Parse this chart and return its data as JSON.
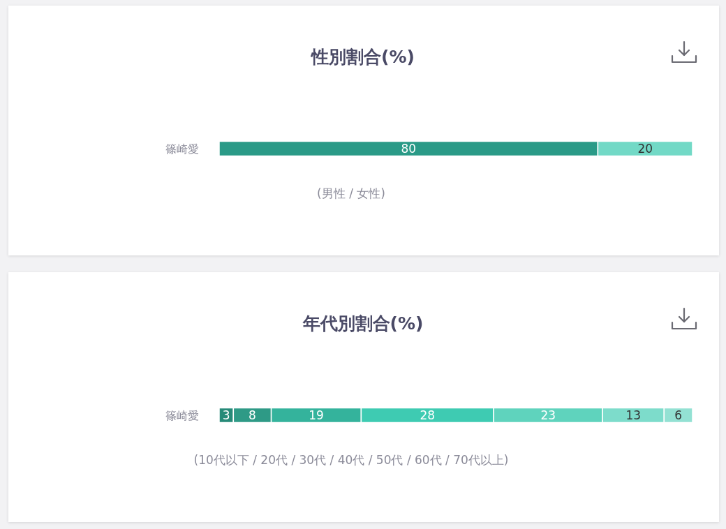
{
  "chart_data": [
    {
      "type": "bar",
      "orientation": "horizontal",
      "stacked": true,
      "title": "性別割合(%)",
      "xlabel": "(男性 / 女性)",
      "categories": [
        "篠崎愛"
      ],
      "series": [
        {
          "color": "#2a9a87",
          "values": [
            80
          ]
        },
        {
          "color": "#72d9c6",
          "values": [
            20
          ]
        }
      ],
      "xlim": [
        0,
        100
      ],
      "data_labels": true,
      "tick_labels": "y"
    },
    {
      "type": "bar",
      "orientation": "horizontal",
      "stacked": true,
      "title": "年代別割合(%)",
      "xlabel": "(10代以下 / 20代 / 30代 / 40代 / 50代 / 60代 / 70代以上)",
      "categories": [
        "篠崎愛"
      ],
      "series": [
        {
          "color": "#268a78",
          "values": [
            3
          ]
        },
        {
          "color": "#2e9a86",
          "values": [
            8
          ]
        },
        {
          "color": "#34b39c",
          "values": [
            19
          ]
        },
        {
          "color": "#3ecbb2",
          "values": [
            28
          ]
        },
        {
          "color": "#5fd3bd",
          "values": [
            23
          ]
        },
        {
          "color": "#7ddccb",
          "values": [
            13
          ]
        },
        {
          "color": "#93e1d3",
          "values": [
            6
          ]
        }
      ],
      "xlim": [
        0,
        100
      ],
      "data_labels": true,
      "tick_labels": "y"
    }
  ]
}
